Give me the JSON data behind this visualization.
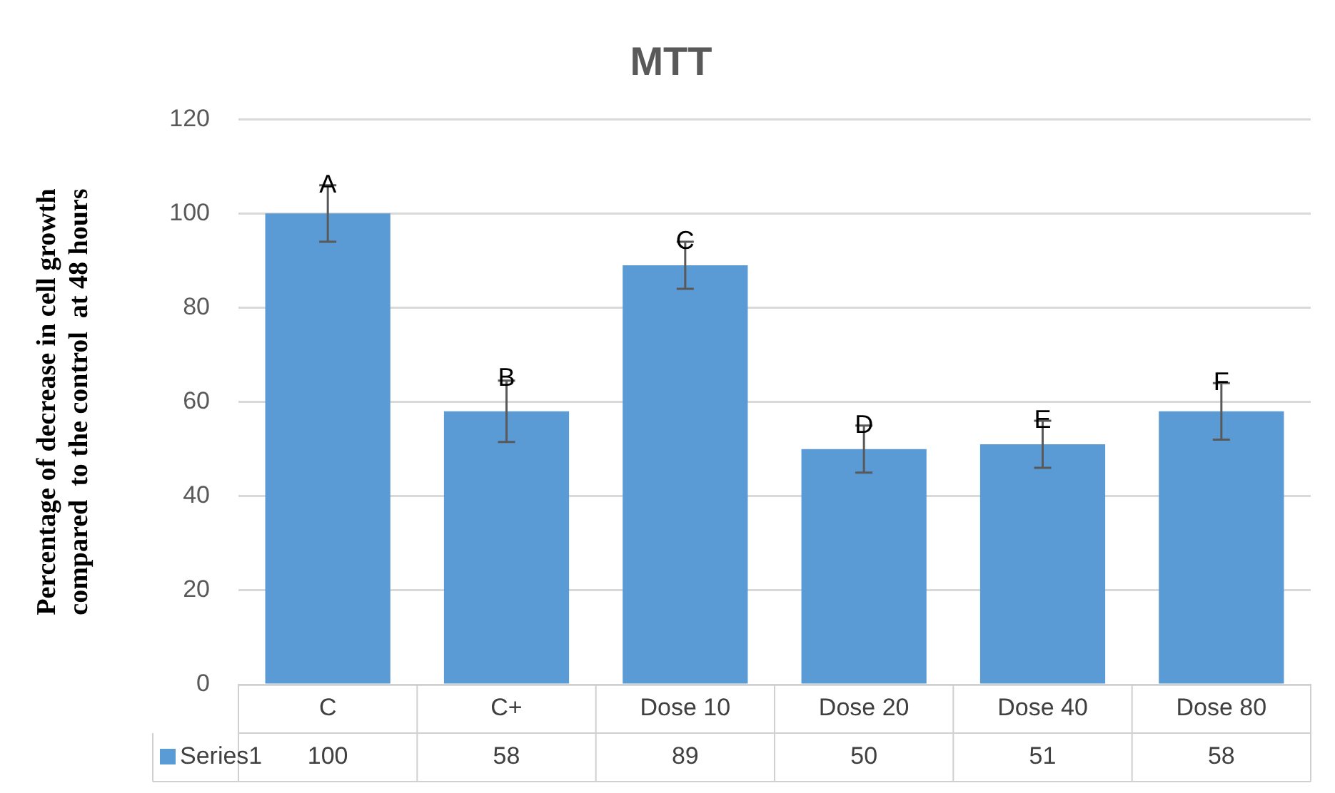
{
  "chart_data": {
    "type": "bar",
    "title": "MTT",
    "ylabel": "Percentage of decrease in cell growth\ncompared  to the control  at 48 hours",
    "categories": [
      "C",
      "C+",
      "Dose 10",
      "Dose 20",
      "Dose 40",
      "Dose 80"
    ],
    "series": [
      {
        "name": "Series1",
        "color": "#5b9bd5",
        "values": [
          100,
          58,
          89,
          50,
          51,
          58
        ],
        "errors": [
          6,
          6.5,
          5,
          5,
          5,
          6
        ]
      }
    ],
    "ylim": [
      0,
      120
    ],
    "yticks": [
      0,
      20,
      40,
      60,
      80,
      100,
      120
    ],
    "grid": "y",
    "data_labels": true,
    "annotations": [
      {
        "text": "A",
        "x": "C",
        "y": 106
      },
      {
        "text": "B",
        "x": "C+",
        "y": 65
      },
      {
        "text": "C",
        "x": "Dose 10",
        "y": 94
      },
      {
        "text": "D",
        "x": "Dose 20",
        "y": 55
      },
      {
        "text": "E",
        "x": "Dose 40",
        "y": 56
      },
      {
        "text": "F",
        "x": "Dose 80",
        "y": 64
      }
    ]
  }
}
